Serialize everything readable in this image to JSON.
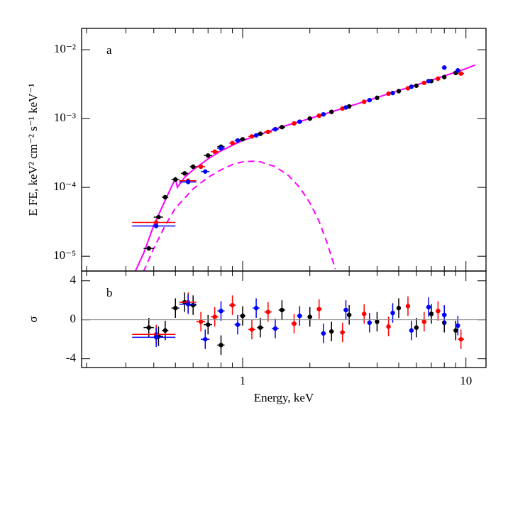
{
  "chart_data": [
    {
      "type": "scatter",
      "panel_label": "a",
      "ylabel": "E FE, keV² cm⁻² s⁻¹ keV⁻¹",
      "xlog": true,
      "ylog": true,
      "xlim": [
        0.19,
        12.3
      ],
      "ylim": [
        6.1e-06,
        0.0204
      ],
      "yticks": [
        {
          "value": 0.01,
          "label": "10⁻²"
        },
        {
          "value": 0.001,
          "label": "10⁻³"
        },
        {
          "value": 0.0001,
          "label": "10⁻⁴"
        },
        {
          "value": 1e-05,
          "label": "10⁻⁵"
        }
      ],
      "series": [
        {
          "color": "#000000",
          "x": [
            0.38,
            0.42,
            0.45,
            0.5,
            0.55,
            0.6,
            0.7,
            0.8,
            1.0,
            1.2,
            1.5,
            2.0,
            2.5,
            3.0,
            4.0,
            5.0,
            6.0,
            7.0,
            8.0,
            9.0
          ],
          "xerr": [
            0.02,
            0.02,
            0.015,
            0.02,
            0.02,
            0.02,
            0.03,
            0.03,
            0.03,
            0.04,
            0.05,
            0.05,
            0.06,
            0.07,
            0.08,
            0.1,
            0.12,
            0.14,
            0.16,
            0.2
          ],
          "values": [
            1.3e-05,
            3.7e-05,
            7.2e-05,
            0.00013,
            0.00016,
            0.0002,
            0.00029,
            0.00039,
            0.0005,
            0.0006,
            0.00075,
            0.001,
            0.00125,
            0.0015,
            0.002,
            0.0025,
            0.003,
            0.0035,
            0.004,
            0.0046
          ]
        },
        {
          "color": "#ff0000",
          "x": [
            0.41,
            0.57,
            0.65,
            0.75,
            0.9,
            1.1,
            1.3,
            1.7,
            2.2,
            2.8,
            3.5,
            4.5,
            5.5,
            6.5,
            7.5,
            9.5
          ],
          "xerr": [
            0.09,
            0.05,
            0.03,
            0.03,
            0.03,
            0.04,
            0.05,
            0.05,
            0.06,
            0.07,
            0.08,
            0.1,
            0.12,
            0.14,
            0.16,
            0.3
          ],
          "values": [
            3.1e-05,
            0.000125,
            0.0002,
            0.00033,
            0.00044,
            0.00055,
            0.00064,
            0.00085,
            0.0011,
            0.0014,
            0.00175,
            0.0023,
            0.00275,
            0.0033,
            0.0038,
            0.0045
          ]
        },
        {
          "color": "#0000ff",
          "x": [
            0.41,
            0.57,
            0.68,
            0.8,
            0.95,
            1.15,
            1.4,
            1.8,
            2.3,
            2.9,
            3.7,
            4.7,
            5.7,
            6.8,
            8.0,
            9.2
          ],
          "xerr": [
            0.09,
            0.05,
            0.03,
            0.03,
            0.03,
            0.04,
            0.05,
            0.05,
            0.06,
            0.07,
            0.08,
            0.1,
            0.12,
            0.14,
            0.2,
            0.2
          ],
          "values": [
            2.75e-05,
            0.00012,
            0.00017,
            0.00037,
            0.00048,
            0.00057,
            0.0007,
            0.0009,
            0.00115,
            0.00145,
            0.00185,
            0.00235,
            0.0029,
            0.0035,
            0.0055,
            0.005
          ]
        }
      ],
      "models": [
        {
          "color": "#ff00ff",
          "dashed": false,
          "x": [
            0.33,
            0.36,
            0.4,
            0.45,
            0.5,
            0.51,
            0.55,
            0.6,
            0.7,
            0.8,
            1.0,
            1.5,
            2,
            3,
            5,
            7,
            10,
            11
          ],
          "values": [
            6e-06,
            1.1e-05,
            2.8e-05,
            6.5e-05,
            0.000135,
            0.0001,
            0.00014,
            0.00018,
            0.00026,
            0.00034,
            0.00048,
            0.00076,
            0.001,
            0.0015,
            0.00255,
            0.0036,
            0.0053,
            0.006
          ]
        },
        {
          "color": "#ff00ff",
          "dashed": true,
          "x": [
            0.36,
            0.4,
            0.45,
            0.5,
            0.6,
            0.7,
            0.8,
            0.9,
            1.0,
            1.1,
            1.2,
            1.4,
            1.6,
            1.8,
            2.0,
            2.2,
            2.4,
            2.6
          ],
          "values": [
            6e-06,
            1.3e-05,
            2.8e-05,
            5e-05,
            9.5e-05,
            0.00014,
            0.00018,
            0.000215,
            0.000235,
            0.00024,
            0.000235,
            0.0002,
            0.00015,
            0.0001,
            6e-05,
            3.2e-05,
            1.5e-05,
            6.5e-06
          ]
        }
      ]
    },
    {
      "type": "scatter",
      "panel_label": "b",
      "ylabel": "σ",
      "xlabel": "Energy, keV",
      "xlog": true,
      "xlim": [
        0.19,
        12.3
      ],
      "ylim": [
        -4.9,
        5
      ],
      "xticks": [
        1,
        10
      ],
      "xminorticks": [
        0.2,
        0.3,
        0.4,
        0.5,
        0.6,
        0.7,
        0.8,
        0.9,
        2,
        3,
        4,
        5,
        6,
        7,
        8,
        9
      ],
      "yticks": [
        4,
        0,
        -4
      ],
      "refline": 0,
      "errors": 1,
      "series": [
        {
          "color": "#000000",
          "x": [
            0.38,
            0.42,
            0.45,
            0.5,
            0.55,
            0.6,
            0.7,
            0.8,
            1.0,
            1.2,
            1.5,
            2.0,
            2.5,
            3.0,
            4.0,
            5.0,
            6.0,
            7.0,
            8.0,
            9.0
          ],
          "xerr": [
            0.02,
            0.02,
            0.015,
            0.02,
            0.02,
            0.02,
            0.03,
            0.03,
            0.03,
            0.04,
            0.05,
            0.05,
            0.06,
            0.07,
            0.08,
            0.1,
            0.12,
            0.14,
            0.16,
            0.2
          ],
          "values": [
            -0.8,
            -1.7,
            -1.1,
            1.2,
            1.8,
            1.5,
            -0.5,
            -2.6,
            0.4,
            -0.8,
            1.0,
            0.3,
            -1.2,
            0.5,
            -0.2,
            1.2,
            -0.8,
            0.6,
            -0.3,
            -1.1
          ]
        },
        {
          "color": "#ff0000",
          "x": [
            0.41,
            0.57,
            0.65,
            0.75,
            0.9,
            1.1,
            1.3,
            1.7,
            2.2,
            2.8,
            3.5,
            4.5,
            5.5,
            6.5,
            7.5,
            9.5
          ],
          "xerr": [
            0.09,
            0.05,
            0.03,
            0.03,
            0.03,
            0.04,
            0.05,
            0.05,
            0.06,
            0.07,
            0.08,
            0.1,
            0.12,
            0.14,
            0.16,
            0.3
          ],
          "values": [
            -1.5,
            1.8,
            -0.2,
            0.3,
            1.5,
            -1.0,
            0.8,
            -0.4,
            1.1,
            -1.3,
            0.6,
            -0.7,
            1.4,
            -0.2,
            0.9,
            -2.0
          ]
        },
        {
          "color": "#0000ff",
          "x": [
            0.41,
            0.57,
            0.68,
            0.8,
            0.95,
            1.15,
            1.4,
            1.8,
            2.3,
            2.9,
            3.7,
            4.7,
            5.7,
            6.8,
            8.0,
            9.2
          ],
          "xerr": [
            0.09,
            0.05,
            0.03,
            0.03,
            0.03,
            0.04,
            0.05,
            0.05,
            0.06,
            0.07,
            0.08,
            0.1,
            0.12,
            0.14,
            0.2,
            0.2
          ],
          "values": [
            -1.8,
            1.6,
            -2.0,
            0.9,
            -0.5,
            1.2,
            -0.9,
            0.4,
            -1.4,
            1.0,
            -0.3,
            0.7,
            -1.1,
            1.3,
            0.5,
            -0.6
          ]
        }
      ]
    }
  ]
}
